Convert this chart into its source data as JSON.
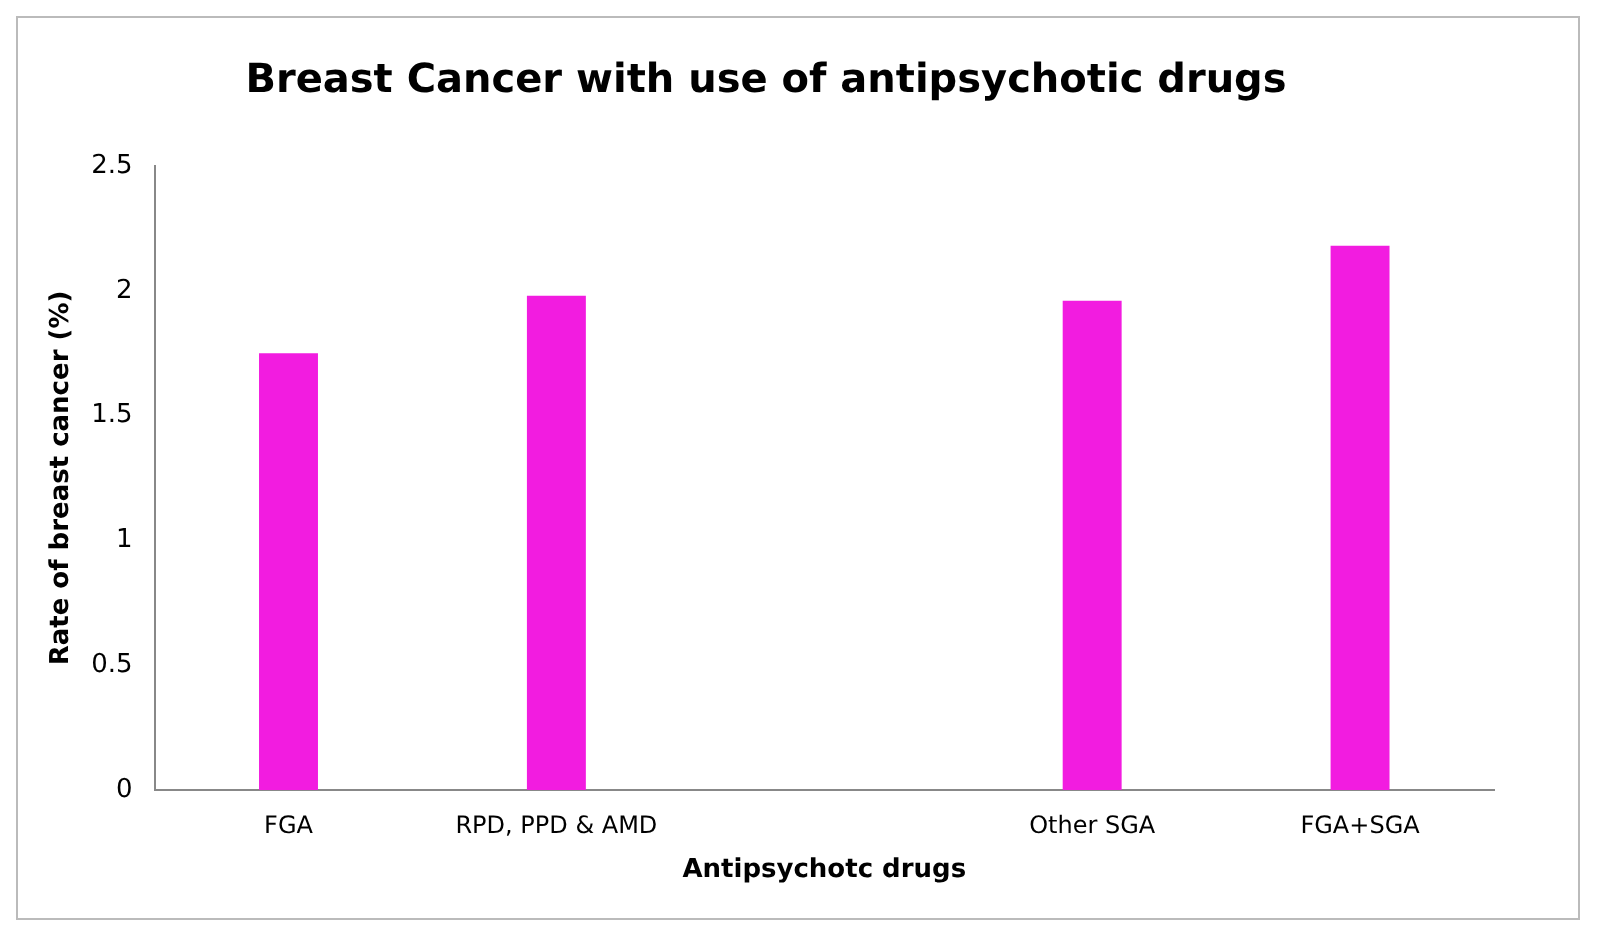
{
  "chart_data": {
    "type": "bar",
    "title": "Breast Cancer with use of antipsychotic drugs",
    "xlabel": "Antipsychotc drugs",
    "ylabel": "Rate of breast cancer (%)",
    "categories": [
      "FGA",
      "RPD, PPD & AMD",
      null,
      "Other SGA",
      "FGA+SGA"
    ],
    "values": [
      1.75,
      1.98,
      null,
      1.96,
      2.18
    ],
    "color": "#f21ce0",
    "ylim": [
      0,
      2.5
    ],
    "yticks": [
      0,
      0.5,
      1,
      1.5,
      2,
      2.5
    ],
    "grid": false,
    "legend": false
  }
}
